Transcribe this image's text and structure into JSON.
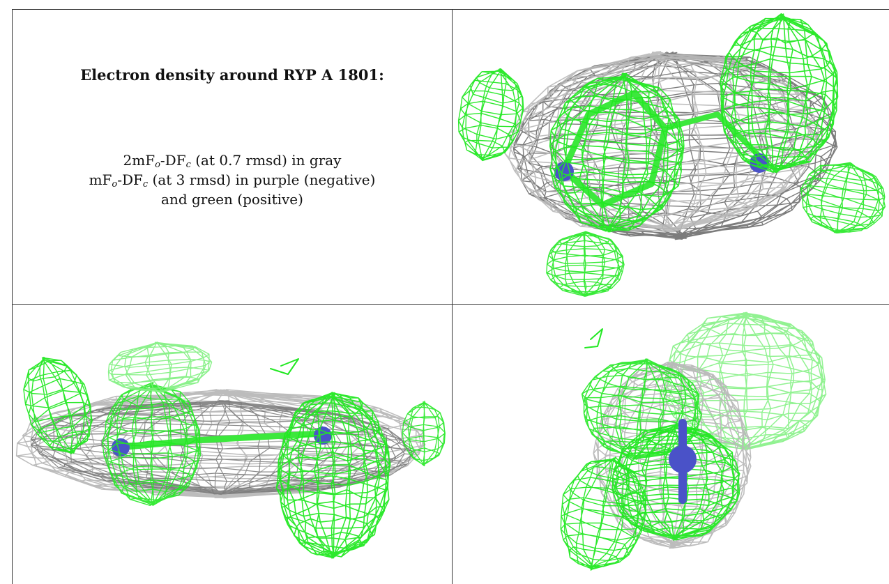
{
  "caption": {
    "title": "Electron density around RYP A 1801:",
    "line1": {
      "prefix": "2mF",
      "sub1": "o",
      "mid": "-DF",
      "sub2": "c",
      "suffix": " (at 0.7 rmsd) in gray"
    },
    "line2": {
      "prefix": "mF",
      "sub1": "o",
      "mid": "-DF",
      "sub2": "c",
      "suffix": " (at 3 rmsd) in purple (negative)"
    },
    "line3": "and green (positive)"
  },
  "colors": {
    "gray_mesh": "#b8b8b8",
    "dark_mesh": "#6e6e6e",
    "green_mesh": "#22e822",
    "light_green_mesh": "#7ef07e",
    "ligand_blue": "#4a52c8",
    "ligand_green": "#3ce83c"
  },
  "panels": [
    {
      "view": "top-right",
      "icon": "electron-density-map-view-1"
    },
    {
      "view": "bottom-left",
      "icon": "electron-density-map-view-2"
    },
    {
      "view": "bottom-right",
      "icon": "electron-density-map-view-3"
    }
  ]
}
